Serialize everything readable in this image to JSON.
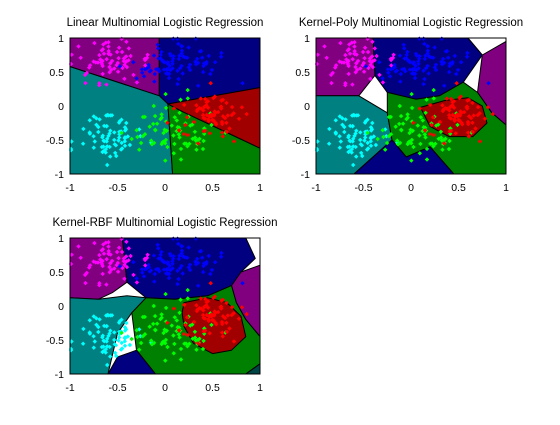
{
  "colors": {
    "class_purple": "#800080",
    "class_blue": "#000080",
    "class_teal": "#008080",
    "class_green": "#008000",
    "class_red": "#A00000",
    "class_dark_cyan": "#004545",
    "point_magenta": "#FF00FF",
    "point_blue": "#0000FF",
    "point_cyan": "#00FFFF",
    "point_green": "#00FF00",
    "point_red": "#FF0000",
    "boundary": "#000000"
  },
  "chart_data": [
    {
      "type": "scatter",
      "plot": "decision-regions",
      "title": "Linear Multinomial Logistic Regression",
      "xlim": [
        -1,
        1
      ],
      "ylim": [
        -1,
        1
      ],
      "xticks": [
        "-1",
        "-0.5",
        "0",
        "0.5",
        "1"
      ],
      "yticks": [
        "1",
        "0.5",
        "0",
        "-0.5",
        "-1"
      ],
      "grid": false,
      "regions": [
        {
          "class": "purple",
          "color": "#800080",
          "polygon": [
            [
              -1,
              1
            ],
            [
              -0.06,
              1
            ],
            [
              -0.06,
              0.15
            ],
            [
              -1,
              0.58
            ]
          ]
        },
        {
          "class": "blue",
          "color": "#000080",
          "polygon": [
            [
              -0.06,
              1
            ],
            [
              1,
              1
            ],
            [
              1,
              0.27
            ],
            [
              0.03,
              0.03
            ],
            [
              -0.06,
              0.15
            ]
          ]
        },
        {
          "class": "teal",
          "color": "#008080",
          "polygon": [
            [
              -1,
              0.58
            ],
            [
              -0.06,
              0.15
            ],
            [
              0.03,
              0.03
            ],
            [
              0.08,
              -1
            ],
            [
              -1,
              -1
            ]
          ]
        },
        {
          "class": "green",
          "color": "#008000",
          "polygon": [
            [
              0.03,
              0.03
            ],
            [
              0.18,
              -0.08
            ],
            [
              1,
              -0.62
            ],
            [
              1,
              -1
            ],
            [
              0.08,
              -1
            ]
          ]
        },
        {
          "class": "red",
          "color": "#A00000",
          "polygon": [
            [
              0.03,
              0.03
            ],
            [
              1,
              0.27
            ],
            [
              1,
              -0.62
            ],
            [
              0.18,
              -0.08
            ]
          ]
        }
      ]
    },
    {
      "type": "scatter",
      "plot": "decision-regions",
      "title": "Kernel-Poly Multinomial Logistic Regression",
      "xlim": [
        -1,
        1
      ],
      "ylim": [
        -1,
        1
      ],
      "xticks": [
        "-1",
        "-0.5",
        "0",
        "0.5",
        "1"
      ],
      "yticks": [
        "1",
        "0.5",
        "0",
        "-0.5",
        "-1"
      ],
      "grid": false,
      "regions": [
        {
          "class": "blue",
          "color": "#000080",
          "polygon": [
            [
              -0.4,
              1
            ],
            [
              0.6,
              1
            ],
            [
              0.75,
              0.75
            ],
            [
              0.55,
              0.35
            ],
            [
              0.3,
              0.15
            ],
            [
              0.05,
              0.1
            ],
            [
              -0.25,
              0.2
            ],
            [
              -0.38,
              0.45
            ]
          ]
        },
        {
          "class": "purple",
          "color": "#800080",
          "polygon": [
            [
              -1,
              1
            ],
            [
              -0.4,
              1
            ],
            [
              -0.38,
              0.45
            ],
            [
              -0.55,
              0.15
            ],
            [
              -1,
              0.15
            ]
          ]
        },
        {
          "class": "magenta",
          "color": "#800080",
          "polygon": [
            [
              0.75,
              0.75
            ],
            [
              1,
              0.95
            ],
            [
              1,
              -0.28
            ],
            [
              0.85,
              -0.1
            ],
            [
              0.7,
              0.2
            ]
          ]
        },
        {
          "class": "teal",
          "color": "#008080",
          "polygon": [
            [
              -1,
              0.15
            ],
            [
              -0.55,
              0.15
            ],
            [
              -0.25,
              -0.1
            ],
            [
              -0.2,
              -0.5
            ],
            [
              -0.6,
              -1
            ],
            [
              -1,
              -1
            ]
          ]
        },
        {
          "class": "green",
          "color": "#008000",
          "polygon": [
            [
              -0.25,
              0.2
            ],
            [
              0.05,
              0.1
            ],
            [
              0.3,
              0.15
            ],
            [
              0.55,
              0.35
            ],
            [
              0.7,
              0.2
            ],
            [
              0.85,
              -0.1
            ],
            [
              1,
              -0.28
            ],
            [
              1,
              -1
            ],
            [
              0.45,
              -1
            ],
            [
              0.2,
              -0.6
            ],
            [
              -0.05,
              -0.75
            ],
            [
              -0.2,
              -0.5
            ],
            [
              -0.25,
              -0.1
            ]
          ]
        },
        {
          "class": "red",
          "color": "#A00000",
          "polygon": [
            [
              0.1,
              -0.02
            ],
            [
              0.35,
              0.08
            ],
            [
              0.6,
              0.12
            ],
            [
              0.75,
              0.0
            ],
            [
              0.8,
              -0.25
            ],
            [
              0.65,
              -0.45
            ],
            [
              0.4,
              -0.45
            ],
            [
              0.2,
              -0.3
            ]
          ]
        },
        {
          "class": "blue",
          "color": "#000080",
          "polygon": [
            [
              -0.6,
              -1
            ],
            [
              -0.2,
              -0.5
            ],
            [
              -0.05,
              -0.75
            ],
            [
              0.2,
              -0.6
            ],
            [
              0.45,
              -1
            ]
          ]
        }
      ]
    },
    {
      "type": "scatter",
      "plot": "decision-regions",
      "title": "Kernel-RBF Multinomial Logistic Regression",
      "xlim": [
        -1,
        1
      ],
      "ylim": [
        -1,
        1
      ],
      "xticks": [
        "-1",
        "-0.5",
        "0",
        "0.5",
        "1"
      ],
      "yticks": [
        "1",
        "0.5",
        "0",
        "-0.5",
        "-1"
      ],
      "grid": false,
      "regions": [
        {
          "class": "purple",
          "color": "#800080",
          "polygon": [
            [
              -1,
              1
            ],
            [
              -0.45,
              1
            ],
            [
              -0.4,
              0.35
            ],
            [
              -0.55,
              0.2
            ],
            [
              -0.7,
              0.1
            ],
            [
              -1,
              0.12
            ]
          ]
        },
        {
          "class": "blue",
          "color": "#000080",
          "polygon": [
            [
              -0.45,
              1
            ],
            [
              0.85,
              1
            ],
            [
              0.95,
              0.7
            ],
            [
              0.8,
              0.5
            ],
            [
              0.7,
              0.3
            ],
            [
              0.45,
              0.15
            ],
            [
              0.1,
              0.1
            ],
            [
              -0.2,
              0.12
            ],
            [
              -0.4,
              0.35
            ]
          ]
        },
        {
          "class": "magenta",
          "color": "#800080",
          "polygon": [
            [
              0.8,
              0.5
            ],
            [
              1,
              0.6
            ],
            [
              1,
              -0.45
            ],
            [
              0.85,
              -0.2
            ],
            [
              0.75,
              0.05
            ],
            [
              0.7,
              0.3
            ]
          ]
        },
        {
          "class": "teal",
          "color": "#008080",
          "polygon": [
            [
              -1,
              0.12
            ],
            [
              -0.7,
              0.1
            ],
            [
              -0.4,
              0.15
            ],
            [
              -0.2,
              0.12
            ],
            [
              -0.35,
              -0.1
            ],
            [
              -0.5,
              -0.4
            ],
            [
              -0.6,
              -1
            ],
            [
              -1,
              -1
            ]
          ]
        },
        {
          "class": "green",
          "color": "#008000",
          "polygon": [
            [
              -0.2,
              0.12
            ],
            [
              0.1,
              0.1
            ],
            [
              0.45,
              0.15
            ],
            [
              0.7,
              0.3
            ],
            [
              0.75,
              0.05
            ],
            [
              0.85,
              -0.2
            ],
            [
              1,
              -0.45
            ],
            [
              1,
              -0.85
            ],
            [
              0.85,
              -1
            ],
            [
              -0.1,
              -1
            ],
            [
              -0.3,
              -0.65
            ],
            [
              -0.35,
              -0.1
            ]
          ]
        },
        {
          "class": "red",
          "color": "#A00000",
          "polygon": [
            [
              0.2,
              0.05
            ],
            [
              0.45,
              0.12
            ],
            [
              0.65,
              0.05
            ],
            [
              0.8,
              -0.15
            ],
            [
              0.85,
              -0.45
            ],
            [
              0.7,
              -0.65
            ],
            [
              0.5,
              -0.7
            ],
            [
              0.3,
              -0.55
            ],
            [
              0.2,
              -0.3
            ],
            [
              0.18,
              -0.1
            ]
          ]
        },
        {
          "class": "blue",
          "color": "#000080",
          "polygon": [
            [
              -0.6,
              -1
            ],
            [
              -0.5,
              -0.75
            ],
            [
              -0.3,
              -0.65
            ],
            [
              -0.1,
              -1
            ]
          ]
        },
        {
          "class": "dark-cyan",
          "color": "#004545",
          "polygon": [
            [
              0.85,
              -1
            ],
            [
              1,
              -0.85
            ],
            [
              1,
              -1
            ]
          ]
        }
      ]
    }
  ],
  "point_classes": [
    {
      "name": "magenta",
      "color": "#FF00FF",
      "center": [
        -0.6,
        0.6
      ],
      "spread": [
        0.35,
        0.32
      ],
      "count": 70
    },
    {
      "name": "blue",
      "color": "#0000FF",
      "center": [
        0.1,
        0.65
      ],
      "spread": [
        0.45,
        0.3
      ],
      "count": 90
    },
    {
      "name": "cyan",
      "color": "#00FFFF",
      "center": [
        -0.6,
        -0.45
      ],
      "spread": [
        0.32,
        0.3
      ],
      "count": 75
    },
    {
      "name": "green",
      "color": "#00FF00",
      "center": [
        0.05,
        -0.35
      ],
      "spread": [
        0.4,
        0.35
      ],
      "count": 80
    },
    {
      "name": "red",
      "color": "#FF0000",
      "center": [
        0.5,
        -0.15
      ],
      "spread": [
        0.3,
        0.3
      ],
      "count": 70
    }
  ]
}
